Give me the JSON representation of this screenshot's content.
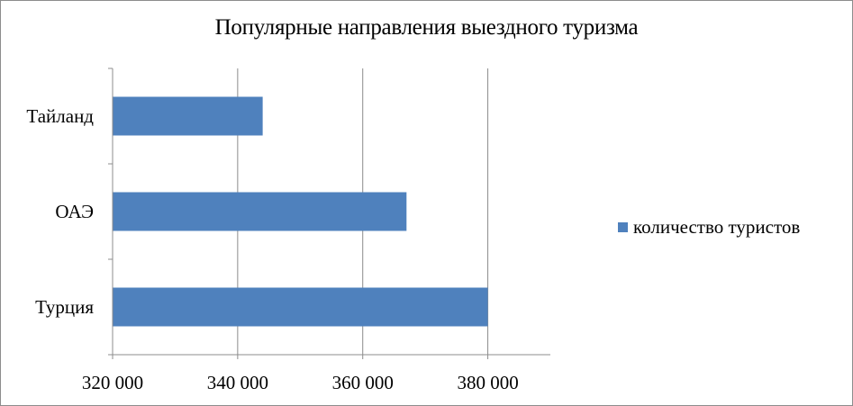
{
  "chart_data": {
    "type": "bar",
    "orientation": "horizontal",
    "title": "Популярные направления выездного туризма",
    "categories": [
      "Тайланд",
      "ОАЭ",
      "Турция"
    ],
    "series": [
      {
        "name": "количество туристов",
        "values": [
          344000,
          367000,
          380000
        ],
        "color": "#4f81bd"
      }
    ],
    "xlim": [
      320000,
      390000
    ],
    "xticks": [
      320000,
      340000,
      360000,
      380000
    ],
    "xtick_labels": [
      "320 000",
      "340 000",
      "360 000",
      "380 000"
    ],
    "grid": true,
    "legend_position": "right"
  }
}
